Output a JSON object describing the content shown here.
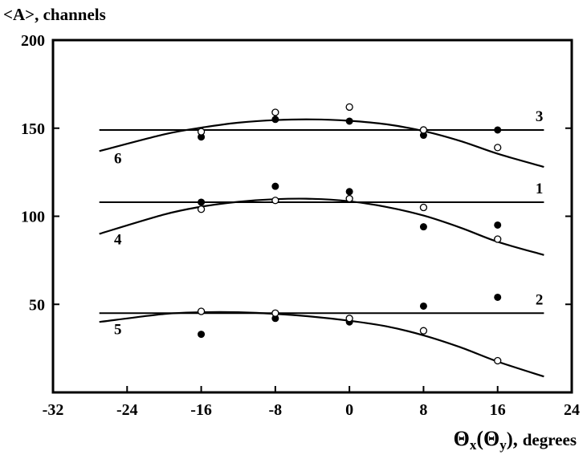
{
  "chart_data": {
    "type": "scatter",
    "ylabel": "<A>, channels",
    "xlabel_main": "Θ",
    "xlabel_sub1": "x",
    "xlabel_paren_open": "(Θ",
    "xlabel_sub2": "y",
    "xlabel_paren_close": "),",
    "xlabel_units": "degrees",
    "xlim": [
      -32,
      24
    ],
    "ylim": [
      0,
      200
    ],
    "x_ticks": [
      -32,
      -24,
      -16,
      -8,
      0,
      8,
      16,
      24
    ],
    "x_tick_labels": [
      "-32",
      "-24",
      "-16",
      "-8",
      "0",
      "8",
      "16",
      "24"
    ],
    "y_ticks": [
      50,
      100,
      150,
      200
    ],
    "y_tick_labels": [
      "50",
      "100",
      "150",
      "200"
    ],
    "grid": false,
    "filled_points": [
      {
        "x": -16,
        "y": 145
      },
      {
        "x": -8,
        "y": 155
      },
      {
        "x": 0,
        "y": 154
      },
      {
        "x": 8,
        "y": 146
      },
      {
        "x": 16,
        "y": 149
      },
      {
        "x": -16,
        "y": 108
      },
      {
        "x": -8,
        "y": 117
      },
      {
        "x": 0,
        "y": 114
      },
      {
        "x": 8,
        "y": 94
      },
      {
        "x": 16,
        "y": 95
      },
      {
        "x": -16,
        "y": 33
      },
      {
        "x": -8,
        "y": 42
      },
      {
        "x": 0,
        "y": 40
      },
      {
        "x": 8,
        "y": 49
      },
      {
        "x": 16,
        "y": 54
      }
    ],
    "open_points": [
      {
        "x": -16,
        "y": 148
      },
      {
        "x": -8,
        "y": 159
      },
      {
        "x": 0,
        "y": 162
      },
      {
        "x": 8,
        "y": 149
      },
      {
        "x": 16,
        "y": 139
      },
      {
        "x": -16,
        "y": 104
      },
      {
        "x": -8,
        "y": 109
      },
      {
        "x": 0,
        "y": 110
      },
      {
        "x": 8,
        "y": 105
      },
      {
        "x": 16,
        "y": 87
      },
      {
        "x": -16,
        "y": 46
      },
      {
        "x": -8,
        "y": 45
      },
      {
        "x": 0,
        "y": 42
      },
      {
        "x": 8,
        "y": 35
      },
      {
        "x": 16,
        "y": 18
      }
    ],
    "flat_lines": [
      {
        "label": "3",
        "y": 149,
        "x_from": -27,
        "x_to": 21
      },
      {
        "label": "1",
        "y": 108,
        "x_from": -27,
        "x_to": 21
      },
      {
        "label": "2",
        "y": 45,
        "x_from": -27,
        "x_to": 21
      }
    ],
    "curves": [
      {
        "label": "6",
        "points": [
          [
            -27,
            137
          ],
          [
            -20,
            146.5
          ],
          [
            -16,
            150.3
          ],
          [
            -12,
            153.1
          ],
          [
            -8,
            154.6
          ],
          [
            -4,
            155
          ],
          [
            0,
            154.2
          ],
          [
            4,
            152.2
          ],
          [
            8,
            148.4
          ],
          [
            12,
            142.7
          ],
          [
            16,
            135.5
          ],
          [
            21,
            128
          ]
        ]
      },
      {
        "label": "4",
        "points": [
          [
            -27,
            90
          ],
          [
            -20,
            101
          ],
          [
            -16,
            105.4
          ],
          [
            -12,
            108.2
          ],
          [
            -8,
            109.7
          ],
          [
            -4,
            109.9
          ],
          [
            0,
            108.5
          ],
          [
            4,
            105.3
          ],
          [
            8,
            100.4
          ],
          [
            12,
            93.5
          ],
          [
            16,
            85.5
          ],
          [
            21,
            78
          ]
        ]
      },
      {
        "label": "5",
        "points": [
          [
            -27,
            40
          ],
          [
            -20,
            44.5
          ],
          [
            -16,
            45.5
          ],
          [
            -12,
            45.5
          ],
          [
            -8,
            44.6
          ],
          [
            -4,
            43
          ],
          [
            0,
            40.7
          ],
          [
            4,
            37.5
          ],
          [
            8,
            32.4
          ],
          [
            12,
            25.6
          ],
          [
            16,
            17.5
          ],
          [
            21,
            9
          ]
        ]
      }
    ],
    "line_labels": [
      {
        "text": "3",
        "x": 20.5,
        "y": 154
      },
      {
        "text": "1",
        "x": 20.5,
        "y": 113
      },
      {
        "text": "2",
        "x": 20.5,
        "y": 50
      },
      {
        "text": "6",
        "x": -25,
        "y": 130
      },
      {
        "text": "4",
        "x": -25,
        "y": 84
      },
      {
        "text": "5",
        "x": -25,
        "y": 33
      }
    ]
  }
}
